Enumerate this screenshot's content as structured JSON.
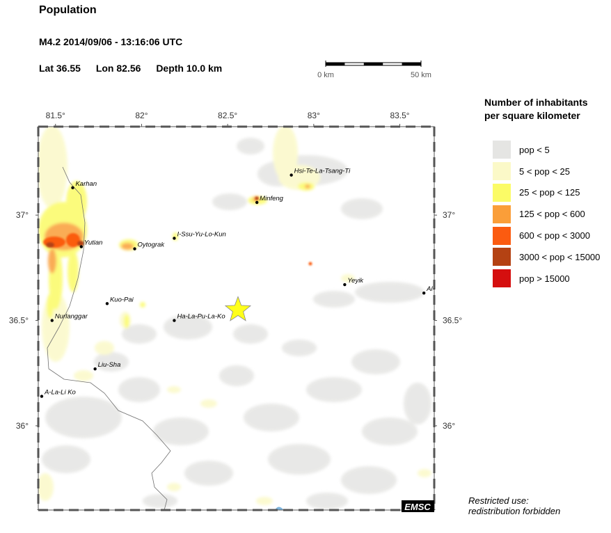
{
  "header": {
    "title": "Population",
    "event": "M4.2  2014/09/06 - 13:16:06 UTC",
    "lat": "Lat 36.55",
    "lon": "Lon  82.56",
    "depth": "Depth  10.0 km"
  },
  "scale": {
    "left_label": "0 km",
    "right_label": "50 km"
  },
  "map": {
    "lon_range": [
      81.4,
      83.7
    ],
    "lat_range": [
      35.6,
      37.42
    ],
    "lon_ticks": [
      {
        "v": 81.5,
        "label": "81.5°"
      },
      {
        "v": 82,
        "label": "82°"
      },
      {
        "v": 82.5,
        "label": "82.5°"
      },
      {
        "v": 83,
        "label": "83°"
      },
      {
        "v": 83.5,
        "label": "83.5°"
      }
    ],
    "lat_ticks": [
      {
        "v": 37,
        "label": "37°"
      },
      {
        "v": 36.5,
        "label": "36.5°"
      },
      {
        "v": 36,
        "label": "36°"
      }
    ],
    "epicenter": {
      "lon": 82.56,
      "lat": 36.55
    },
    "cities": [
      {
        "name": "Karhan",
        "lon": 81.6,
        "lat": 37.13
      },
      {
        "name": "Yutian",
        "lon": 81.65,
        "lat": 36.85
      },
      {
        "name": "Oytograk",
        "lon": 81.96,
        "lat": 36.84
      },
      {
        "name": "I-Ssu-Yu-Lo-Kun",
        "lon": 82.19,
        "lat": 36.89
      },
      {
        "name": "Minfeng",
        "lon": 82.67,
        "lat": 37.06
      },
      {
        "name": "Hsi-Te-La-Tsang-Ti",
        "lon": 82.87,
        "lat": 37.19
      },
      {
        "name": "Yeyik",
        "lon": 83.18,
        "lat": 36.67
      },
      {
        "name": "Al-",
        "lon": 83.64,
        "lat": 36.63
      },
      {
        "name": "Kuo-Pai",
        "lon": 81.8,
        "lat": 36.58
      },
      {
        "name": "Ha-La-Pu-La-Ko",
        "lon": 82.19,
        "lat": 36.5
      },
      {
        "name": "Nurlanggar",
        "lon": 81.48,
        "lat": 36.5
      },
      {
        "name": "Liu-Sha",
        "lon": 81.73,
        "lat": 36.27
      },
      {
        "name": "A-La-Li Ko",
        "lon": 81.42,
        "lat": 36.14
      }
    ],
    "badge": "EMSC"
  },
  "legend": {
    "title_line1": "Number of inhabitants",
    "title_line2": "per square kilometer",
    "items": [
      {
        "label": "pop < 5",
        "color": "#e5e5e3"
      },
      {
        "label": "5 < pop < 25",
        "color": "#fbf9c8"
      },
      {
        "label": "25 < pop < 125",
        "color": "#fbfb66"
      },
      {
        "label": "125 < pop < 600",
        "color": "#fa9e39"
      },
      {
        "label": "600 < pop < 3000",
        "color": "#fb5b10"
      },
      {
        "label": "3000 < pop < 15000",
        "color": "#b44213"
      },
      {
        "label": "pop > 15000",
        "color": "#d50f0f"
      }
    ]
  },
  "footer": {
    "line1": "Restricted use:",
    "line2": "redistribution forbidden"
  }
}
